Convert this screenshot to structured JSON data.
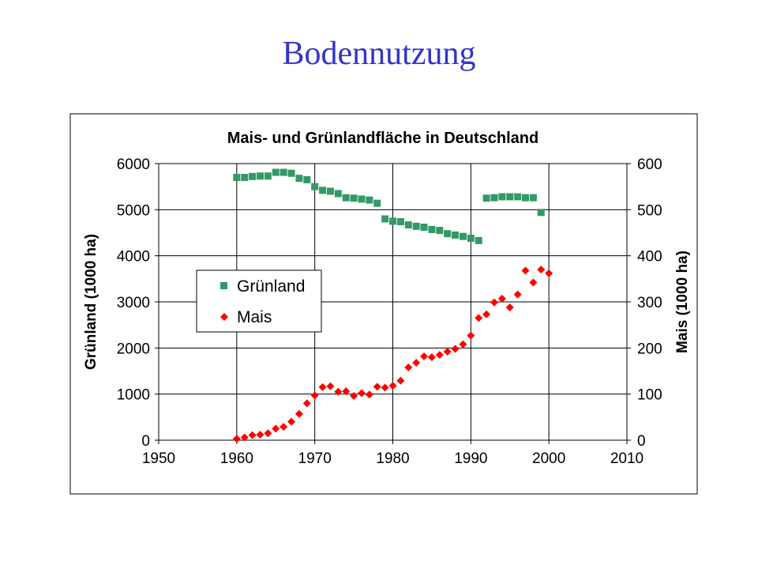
{
  "slide": {
    "title": "Bodennutzung"
  },
  "chart_data": {
    "type": "scatter",
    "title": "Mais- und Grünlandfläche in Deutschland",
    "xlim": [
      1950,
      2010
    ],
    "x_ticks": [
      1950,
      1960,
      1970,
      1980,
      1990,
      2000,
      2010
    ],
    "ylim_left": [
      0,
      6000
    ],
    "y_ticks_left": [
      0,
      1000,
      2000,
      3000,
      4000,
      5000,
      6000
    ],
    "ylim_right": [
      0,
      600
    ],
    "y_ticks_right": [
      0,
      100,
      200,
      300,
      400,
      500,
      600
    ],
    "ylabel_left": "Grünland (1000 ha)",
    "ylabel_right": "Mais (1000 ha)",
    "grid": true,
    "legend_position": "center-left",
    "series": [
      {
        "name": "Grünland",
        "axis": "left",
        "marker": "square",
        "color": "#339966",
        "points": [
          [
            1960,
            5700
          ],
          [
            1961,
            5700
          ],
          [
            1962,
            5720
          ],
          [
            1963,
            5730
          ],
          [
            1964,
            5730
          ],
          [
            1965,
            5810
          ],
          [
            1966,
            5810
          ],
          [
            1967,
            5790
          ],
          [
            1968,
            5680
          ],
          [
            1969,
            5650
          ],
          [
            1970,
            5500
          ],
          [
            1971,
            5420
          ],
          [
            1972,
            5400
          ],
          [
            1973,
            5350
          ],
          [
            1974,
            5260
          ],
          [
            1975,
            5250
          ],
          [
            1976,
            5230
          ],
          [
            1977,
            5210
          ],
          [
            1978,
            5140
          ],
          [
            1979,
            4800
          ],
          [
            1980,
            4750
          ],
          [
            1981,
            4740
          ],
          [
            1982,
            4670
          ],
          [
            1983,
            4640
          ],
          [
            1984,
            4620
          ],
          [
            1985,
            4570
          ],
          [
            1986,
            4550
          ],
          [
            1987,
            4480
          ],
          [
            1988,
            4450
          ],
          [
            1989,
            4420
          ],
          [
            1990,
            4380
          ],
          [
            1991,
            4330
          ],
          [
            1992,
            5250
          ],
          [
            1993,
            5260
          ],
          [
            1994,
            5280
          ],
          [
            1995,
            5280
          ],
          [
            1996,
            5280
          ],
          [
            1997,
            5260
          ],
          [
            1998,
            5260
          ],
          [
            1999,
            4940
          ]
        ]
      },
      {
        "name": "Mais",
        "axis": "right",
        "marker": "diamond",
        "color": "#ff0000",
        "points": [
          [
            1960,
            3
          ],
          [
            1961,
            6
          ],
          [
            1962,
            11
          ],
          [
            1963,
            12
          ],
          [
            1964,
            15
          ],
          [
            1965,
            25
          ],
          [
            1966,
            29
          ],
          [
            1967,
            40
          ],
          [
            1968,
            57
          ],
          [
            1969,
            80
          ],
          [
            1970,
            97
          ],
          [
            1971,
            115
          ],
          [
            1972,
            117
          ],
          [
            1973,
            105
          ],
          [
            1974,
            106
          ],
          [
            1975,
            96
          ],
          [
            1976,
            102
          ],
          [
            1977,
            99
          ],
          [
            1978,
            116
          ],
          [
            1979,
            114
          ],
          [
            1980,
            118
          ],
          [
            1981,
            129
          ],
          [
            1982,
            158
          ],
          [
            1983,
            168
          ],
          [
            1984,
            182
          ],
          [
            1985,
            180
          ],
          [
            1986,
            185
          ],
          [
            1987,
            192
          ],
          [
            1988,
            198
          ],
          [
            1989,
            208
          ],
          [
            1990,
            227
          ],
          [
            1991,
            265
          ],
          [
            1992,
            273
          ],
          [
            1993,
            299
          ],
          [
            1994,
            307
          ],
          [
            1995,
            288
          ],
          [
            1996,
            316
          ],
          [
            1997,
            368
          ],
          [
            1998,
            342
          ],
          [
            1999,
            370
          ],
          [
            2000,
            362
          ]
        ]
      }
    ]
  }
}
